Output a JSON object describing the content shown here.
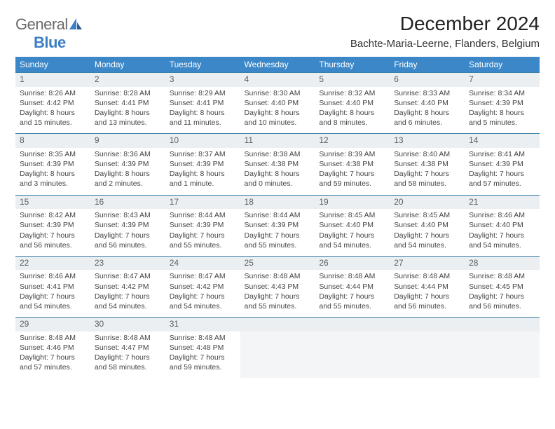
{
  "logo": {
    "text_gray": "General",
    "text_blue": "Blue"
  },
  "title": "December 2024",
  "location": "Bachte-Maria-Leerne, Flanders, Belgium",
  "weekdays": [
    "Sunday",
    "Monday",
    "Tuesday",
    "Wednesday",
    "Thursday",
    "Friday",
    "Saturday"
  ],
  "colors": {
    "header_bg": "#3b87c8",
    "header_text": "#ffffff",
    "daynum_bg": "#eceff1",
    "daynum_border": "#3b7fa8",
    "logo_gray": "#6a6a6a",
    "logo_blue": "#3b7fc4"
  },
  "weeks": [
    [
      {
        "n": "1",
        "sr": "Sunrise: 8:26 AM",
        "ss": "Sunset: 4:42 PM",
        "dl1": "Daylight: 8 hours",
        "dl2": "and 15 minutes."
      },
      {
        "n": "2",
        "sr": "Sunrise: 8:28 AM",
        "ss": "Sunset: 4:41 PM",
        "dl1": "Daylight: 8 hours",
        "dl2": "and 13 minutes."
      },
      {
        "n": "3",
        "sr": "Sunrise: 8:29 AM",
        "ss": "Sunset: 4:41 PM",
        "dl1": "Daylight: 8 hours",
        "dl2": "and 11 minutes."
      },
      {
        "n": "4",
        "sr": "Sunrise: 8:30 AM",
        "ss": "Sunset: 4:40 PM",
        "dl1": "Daylight: 8 hours",
        "dl2": "and 10 minutes."
      },
      {
        "n": "5",
        "sr": "Sunrise: 8:32 AM",
        "ss": "Sunset: 4:40 PM",
        "dl1": "Daylight: 8 hours",
        "dl2": "and 8 minutes."
      },
      {
        "n": "6",
        "sr": "Sunrise: 8:33 AM",
        "ss": "Sunset: 4:40 PM",
        "dl1": "Daylight: 8 hours",
        "dl2": "and 6 minutes."
      },
      {
        "n": "7",
        "sr": "Sunrise: 8:34 AM",
        "ss": "Sunset: 4:39 PM",
        "dl1": "Daylight: 8 hours",
        "dl2": "and 5 minutes."
      }
    ],
    [
      {
        "n": "8",
        "sr": "Sunrise: 8:35 AM",
        "ss": "Sunset: 4:39 PM",
        "dl1": "Daylight: 8 hours",
        "dl2": "and 3 minutes."
      },
      {
        "n": "9",
        "sr": "Sunrise: 8:36 AM",
        "ss": "Sunset: 4:39 PM",
        "dl1": "Daylight: 8 hours",
        "dl2": "and 2 minutes."
      },
      {
        "n": "10",
        "sr": "Sunrise: 8:37 AM",
        "ss": "Sunset: 4:39 PM",
        "dl1": "Daylight: 8 hours",
        "dl2": "and 1 minute."
      },
      {
        "n": "11",
        "sr": "Sunrise: 8:38 AM",
        "ss": "Sunset: 4:38 PM",
        "dl1": "Daylight: 8 hours",
        "dl2": "and 0 minutes."
      },
      {
        "n": "12",
        "sr": "Sunrise: 8:39 AM",
        "ss": "Sunset: 4:38 PM",
        "dl1": "Daylight: 7 hours",
        "dl2": "and 59 minutes."
      },
      {
        "n": "13",
        "sr": "Sunrise: 8:40 AM",
        "ss": "Sunset: 4:38 PM",
        "dl1": "Daylight: 7 hours",
        "dl2": "and 58 minutes."
      },
      {
        "n": "14",
        "sr": "Sunrise: 8:41 AM",
        "ss": "Sunset: 4:39 PM",
        "dl1": "Daylight: 7 hours",
        "dl2": "and 57 minutes."
      }
    ],
    [
      {
        "n": "15",
        "sr": "Sunrise: 8:42 AM",
        "ss": "Sunset: 4:39 PM",
        "dl1": "Daylight: 7 hours",
        "dl2": "and 56 minutes."
      },
      {
        "n": "16",
        "sr": "Sunrise: 8:43 AM",
        "ss": "Sunset: 4:39 PM",
        "dl1": "Daylight: 7 hours",
        "dl2": "and 56 minutes."
      },
      {
        "n": "17",
        "sr": "Sunrise: 8:44 AM",
        "ss": "Sunset: 4:39 PM",
        "dl1": "Daylight: 7 hours",
        "dl2": "and 55 minutes."
      },
      {
        "n": "18",
        "sr": "Sunrise: 8:44 AM",
        "ss": "Sunset: 4:39 PM",
        "dl1": "Daylight: 7 hours",
        "dl2": "and 55 minutes."
      },
      {
        "n": "19",
        "sr": "Sunrise: 8:45 AM",
        "ss": "Sunset: 4:40 PM",
        "dl1": "Daylight: 7 hours",
        "dl2": "and 54 minutes."
      },
      {
        "n": "20",
        "sr": "Sunrise: 8:45 AM",
        "ss": "Sunset: 4:40 PM",
        "dl1": "Daylight: 7 hours",
        "dl2": "and 54 minutes."
      },
      {
        "n": "21",
        "sr": "Sunrise: 8:46 AM",
        "ss": "Sunset: 4:40 PM",
        "dl1": "Daylight: 7 hours",
        "dl2": "and 54 minutes."
      }
    ],
    [
      {
        "n": "22",
        "sr": "Sunrise: 8:46 AM",
        "ss": "Sunset: 4:41 PM",
        "dl1": "Daylight: 7 hours",
        "dl2": "and 54 minutes."
      },
      {
        "n": "23",
        "sr": "Sunrise: 8:47 AM",
        "ss": "Sunset: 4:42 PM",
        "dl1": "Daylight: 7 hours",
        "dl2": "and 54 minutes."
      },
      {
        "n": "24",
        "sr": "Sunrise: 8:47 AM",
        "ss": "Sunset: 4:42 PM",
        "dl1": "Daylight: 7 hours",
        "dl2": "and 54 minutes."
      },
      {
        "n": "25",
        "sr": "Sunrise: 8:48 AM",
        "ss": "Sunset: 4:43 PM",
        "dl1": "Daylight: 7 hours",
        "dl2": "and 55 minutes."
      },
      {
        "n": "26",
        "sr": "Sunrise: 8:48 AM",
        "ss": "Sunset: 4:44 PM",
        "dl1": "Daylight: 7 hours",
        "dl2": "and 55 minutes."
      },
      {
        "n": "27",
        "sr": "Sunrise: 8:48 AM",
        "ss": "Sunset: 4:44 PM",
        "dl1": "Daylight: 7 hours",
        "dl2": "and 56 minutes."
      },
      {
        "n": "28",
        "sr": "Sunrise: 8:48 AM",
        "ss": "Sunset: 4:45 PM",
        "dl1": "Daylight: 7 hours",
        "dl2": "and 56 minutes."
      }
    ],
    [
      {
        "n": "29",
        "sr": "Sunrise: 8:48 AM",
        "ss": "Sunset: 4:46 PM",
        "dl1": "Daylight: 7 hours",
        "dl2": "and 57 minutes."
      },
      {
        "n": "30",
        "sr": "Sunrise: 8:48 AM",
        "ss": "Sunset: 4:47 PM",
        "dl1": "Daylight: 7 hours",
        "dl2": "and 58 minutes."
      },
      {
        "n": "31",
        "sr": "Sunrise: 8:48 AM",
        "ss": "Sunset: 4:48 PM",
        "dl1": "Daylight: 7 hours",
        "dl2": "and 59 minutes."
      },
      null,
      null,
      null,
      null
    ]
  ]
}
